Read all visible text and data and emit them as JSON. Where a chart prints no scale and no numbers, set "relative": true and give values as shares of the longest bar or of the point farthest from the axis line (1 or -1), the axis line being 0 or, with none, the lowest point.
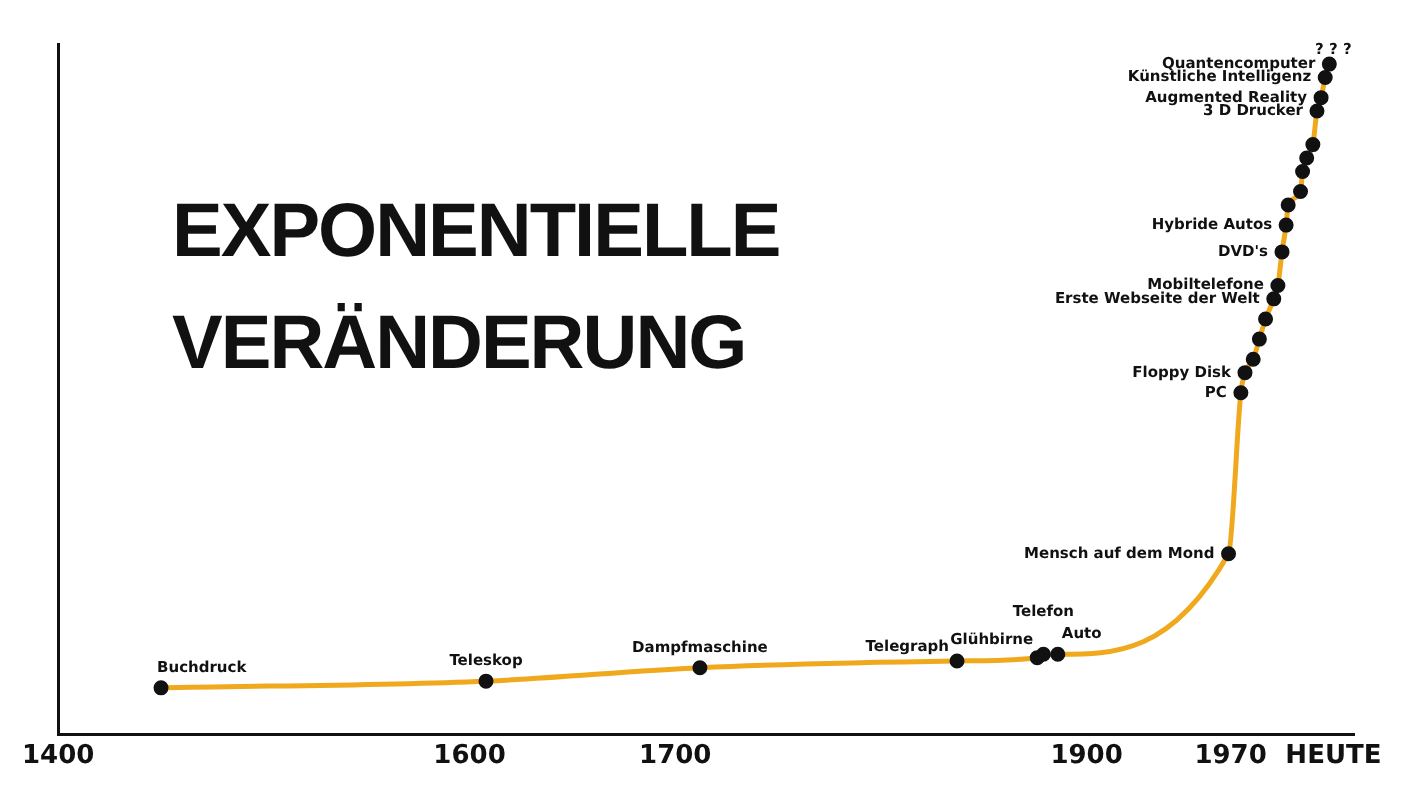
{
  "chart_data": {
    "type": "line",
    "title": "EXPONENTIELLE VERÄNDERUNG",
    "relative": true,
    "x": [
      1450,
      1608,
      1712,
      1837,
      1876,
      1879,
      1886,
      1969,
      1975,
      1977,
      1981,
      1984,
      1987,
      1991,
      1993,
      1995,
      1997,
      1998,
      2004,
      2005,
      2007,
      2010,
      2012,
      2014,
      2016,
      2018
    ],
    "series": [
      {
        "color": "#f0a81c",
        "values": [
          0.07,
          0.08,
          0.1,
          0.11,
          0.115,
          0.12,
          0.12,
          0.27,
          0.51,
          0.54,
          0.56,
          0.59,
          0.62,
          0.65,
          0.67,
          0.72,
          0.76,
          0.79,
          0.81,
          0.84,
          0.86,
          0.88,
          0.93,
          0.95,
          0.98,
          1.0
        ]
      }
    ],
    "xlim": [
      1400,
      2030
    ],
    "xticks": [
      1400,
      1600,
      1700,
      1900,
      1970,
      {
        "value": 2020,
        "label": "HEUTE"
      }
    ],
    "marker": "circle",
    "line_style": "solid",
    "grid": false,
    "legend": false,
    "annotations": [
      {
        "text": "Buchdruck",
        "x": 1450,
        "y": 0.07
      },
      {
        "text": "Teleskop",
        "x": 1608,
        "y": 0.08
      },
      {
        "text": "Dampfmaschine",
        "x": 1712,
        "y": 0.1
      },
      {
        "text": "Telegraph",
        "x": 1837,
        "y": 0.11
      },
      {
        "text": "Glühbirne",
        "x": 1876,
        "y": 0.115
      },
      {
        "text": "Telefon",
        "x": 1879,
        "y": 0.12
      },
      {
        "text": "Auto",
        "x": 1886,
        "y": 0.12
      },
      {
        "text": "Mensch auf dem Mond",
        "x": 1969,
        "y": 0.27
      },
      {
        "text": "PC",
        "x": 1975,
        "y": 0.51
      },
      {
        "text": "Floppy Disk",
        "x": 1977,
        "y": 0.54
      },
      {
        "text": "Erste Webseite der Welt",
        "x": 1991,
        "y": 0.65
      },
      {
        "text": "Mobiltelefone",
        "x": 1993,
        "y": 0.67
      },
      {
        "text": "DVD's",
        "x": 1995,
        "y": 0.72
      },
      {
        "text": "Hybride Autos",
        "x": 1997,
        "y": 0.76
      },
      {
        "text": "3 D Drucker",
        "x": 2012,
        "y": 0.93
      },
      {
        "text": "Augmented Reality",
        "x": 2014,
        "y": 0.95
      },
      {
        "text": "Künstliche Intelligenz",
        "x": 2016,
        "y": 0.98
      },
      {
        "text": "Quantencomputer",
        "x": 2018,
        "y": 1.0
      },
      {
        "text": "? ? ?",
        "x": 2018,
        "y": 1.0
      }
    ]
  }
}
